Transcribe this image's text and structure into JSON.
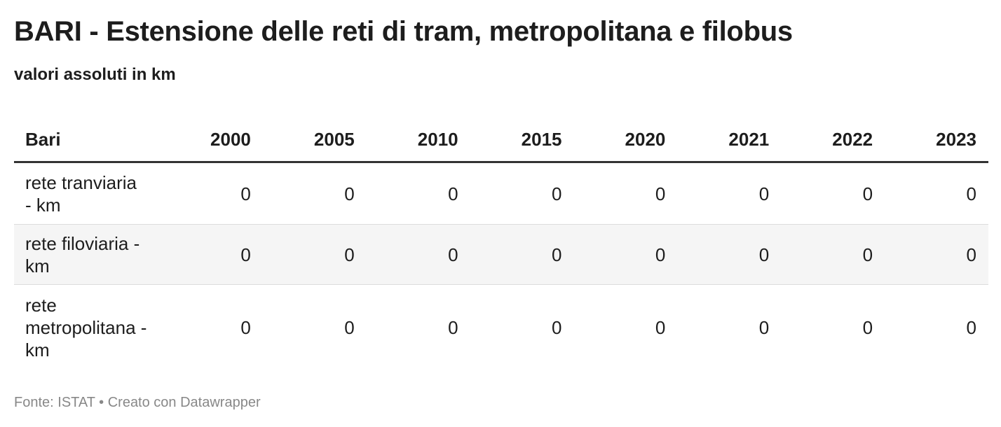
{
  "header": {
    "title": "BARI - Estensione delle reti di tram, metropolitana e filobus",
    "subtitle": "valori assoluti in km"
  },
  "table": {
    "columns": [
      "Bari",
      "2000",
      "2005",
      "2010",
      "2015",
      "2020",
      "2021",
      "2022",
      "2023"
    ],
    "rows": [
      [
        "rete tranviaria - km",
        0,
        0,
        0,
        0,
        0,
        0,
        0,
        0
      ],
      [
        "rete filoviaria - km",
        0,
        0,
        0,
        0,
        0,
        0,
        0,
        0
      ],
      [
        "rete metropolitana - km",
        0,
        0,
        0,
        0,
        0,
        0,
        0,
        0
      ]
    ]
  },
  "footer": "Fonte: ISTAT • Creato con Datawrapper"
}
